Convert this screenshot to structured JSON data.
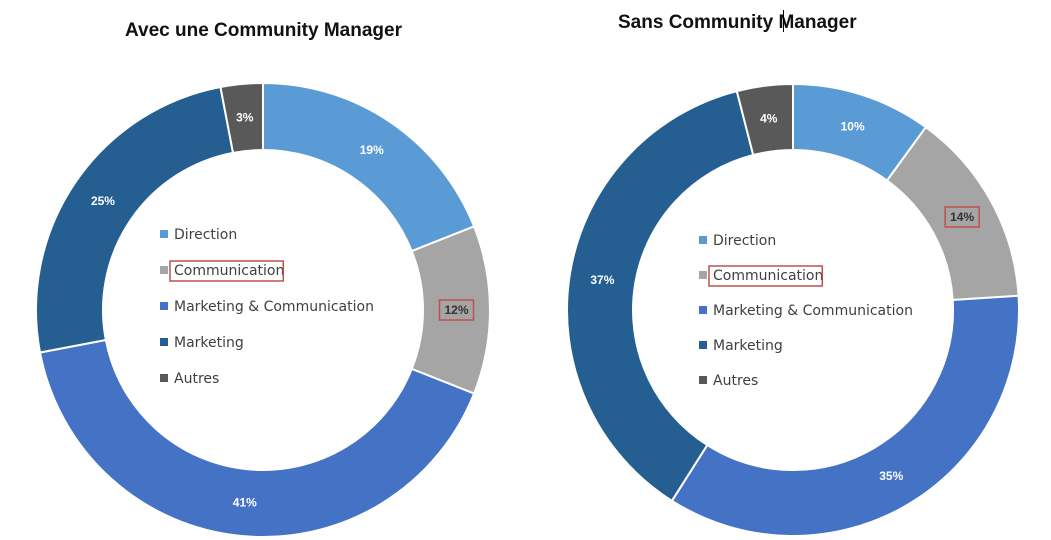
{
  "colors": {
    "Direction": "#5B9BD5",
    "Communication": "#A5A5A5",
    "Marketing & Communication": "#4472C4",
    "Marketing": "#255E91",
    "Autres": "#595959",
    "highlight_box": "#C0504D"
  },
  "chart_data": [
    {
      "type": "pie",
      "title": "Avec une Community Manager",
      "categories": [
        "Direction",
        "Communication",
        "Marketing & Communication",
        "Marketing",
        "Autres"
      ],
      "values": [
        19,
        12,
        41,
        25,
        3
      ],
      "labels": [
        "19%",
        "12%",
        "41%",
        "25%",
        "3%"
      ],
      "highlighted": [
        "Communication"
      ]
    },
    {
      "type": "pie",
      "title": "Sans Community Manager",
      "categories": [
        "Direction",
        "Communication",
        "Marketing & Communication",
        "Marketing",
        "Autres"
      ],
      "values": [
        10,
        14,
        35,
        37,
        4
      ],
      "labels": [
        "10%",
        "14%",
        "35%",
        "37%",
        "4%"
      ],
      "highlighted": [
        "Communication"
      ]
    }
  ]
}
